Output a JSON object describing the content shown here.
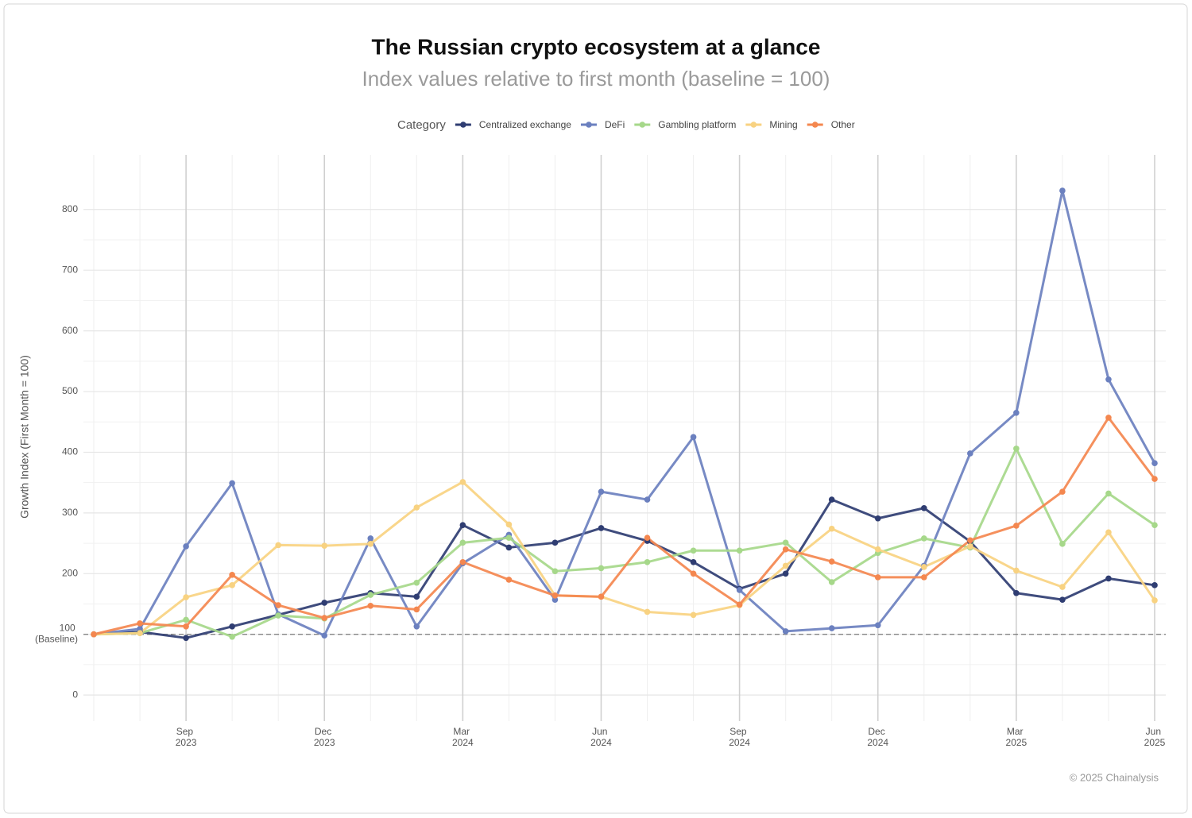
{
  "chart_data": {
    "type": "line",
    "title": "The Russian crypto ecosystem at a glance",
    "subtitle": "Index values relative to first month (baseline = 100)",
    "y_label": "Growth Index (First Month = 100)",
    "legend_title": "Category",
    "footer": "© 2025 Chainalysis",
    "x": [
      "2023-07",
      "2023-08",
      "2023-09",
      "2023-10",
      "2023-11",
      "2023-12",
      "2024-01",
      "2024-02",
      "2024-03",
      "2024-04",
      "2024-05",
      "2024-06",
      "2024-07",
      "2024-08",
      "2024-09",
      "2024-10",
      "2024-11",
      "2024-12",
      "2025-01",
      "2025-02",
      "2025-03",
      "2025-04",
      "2025-05",
      "2025-06"
    ],
    "xticks": [
      {
        "value": "2023-09",
        "label": "Sep 2023"
      },
      {
        "value": "2023-12",
        "label": "Dec 2023"
      },
      {
        "value": "2024-03",
        "label": "Mar 2024"
      },
      {
        "value": "2024-06",
        "label": "Jun 2024"
      },
      {
        "value": "2024-09",
        "label": "Sep 2024"
      },
      {
        "value": "2024-12",
        "label": "Dec 2024"
      },
      {
        "value": "2025-03",
        "label": "Mar 2025"
      },
      {
        "value": "2025-06",
        "label": "Jun 2025"
      }
    ],
    "ylim": [
      -43,
      890
    ],
    "yticks": [
      0,
      {
        "value": 100,
        "label": "100 (Baseline)"
      },
      200,
      300,
      400,
      500,
      600,
      700,
      800
    ],
    "reference_line": 100,
    "grid": true,
    "legend_position": "top",
    "series": [
      {
        "name": "Centralized exchange",
        "color": "#2f3d72",
        "values": [
          100,
          104,
          94,
          113,
          132,
          152,
          168,
          162,
          280,
          243,
          251,
          275,
          254,
          219,
          175,
          200,
          322,
          291,
          308,
          253,
          168,
          157,
          192,
          181
        ]
      },
      {
        "name": "DeFi",
        "color": "#6b80bf",
        "values": [
          100,
          109,
          245,
          349,
          133,
          98,
          258,
          113,
          217,
          264,
          157,
          335,
          322,
          425,
          173,
          105,
          110,
          115,
          213,
          398,
          465,
          831,
          520,
          382
        ]
      },
      {
        "name": "Gambling platform",
        "color": "#a6d88a",
        "values": [
          100,
          102,
          124,
          96,
          131,
          126,
          165,
          185,
          251,
          259,
          204,
          209,
          219,
          238,
          238,
          251,
          186,
          234,
          258,
          243,
          406,
          249,
          332,
          280
        ]
      },
      {
        "name": "Mining",
        "color": "#f8d281",
        "values": [
          100,
          102,
          161,
          181,
          247,
          246,
          249,
          309,
          351,
          281,
          164,
          162,
          137,
          132,
          148,
          213,
          274,
          240,
          211,
          245,
          205,
          178,
          268,
          156
        ]
      },
      {
        "name": "Other",
        "color": "#f4874f",
        "values": [
          100,
          118,
          113,
          198,
          148,
          127,
          147,
          141,
          219,
          190,
          164,
          162,
          259,
          200,
          149,
          240,
          220,
          194,
          194,
          255,
          279,
          335,
          457,
          356
        ]
      }
    ]
  }
}
